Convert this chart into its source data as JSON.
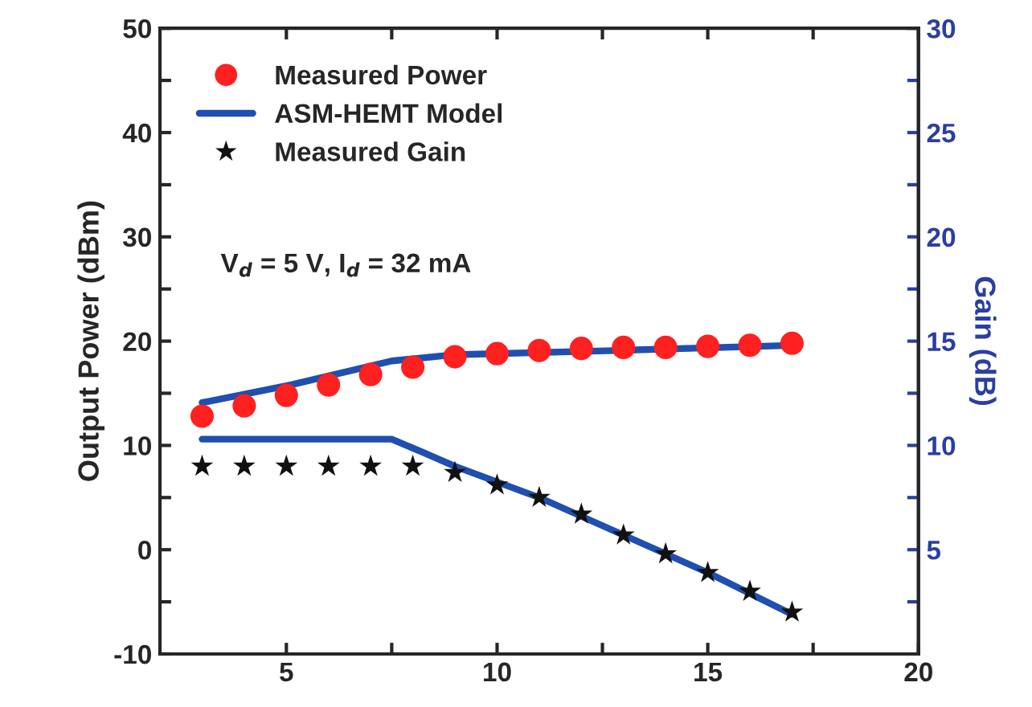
{
  "chart_data": {
    "type": "scatter",
    "xlabel": null,
    "ylabel": "Output Power (dBm)",
    "y2label": "Gain (dB)",
    "xlim": [
      2,
      20
    ],
    "xticks": [
      5,
      {
        "value": 7.5,
        "label": null
      },
      10,
      {
        "value": 12.5,
        "label": null
      },
      15,
      {
        "value": 17.5,
        "label": null
      },
      20
    ],
    "ylim": [
      -10,
      50
    ],
    "yticks": [
      -10,
      {
        "value": -5,
        "label": null
      },
      0,
      {
        "value": 5,
        "label": null
      },
      10,
      {
        "value": 15,
        "label": null
      },
      20,
      {
        "value": 25,
        "label": null
      },
      30,
      {
        "value": 35,
        "label": null
      },
      40,
      {
        "value": 45,
        "label": null
      },
      50
    ],
    "y2lim": [
      0,
      30
    ],
    "y2ticks": [
      {
        "value": 2.5,
        "label": null
      },
      5,
      {
        "value": 7.5,
        "label": null
      },
      10,
      {
        "value": 12.5,
        "label": null
      },
      15,
      {
        "value": 17.5,
        "label": null
      },
      20,
      {
        "value": 22.5,
        "label": null
      },
      25,
      {
        "value": 27.5,
        "label": null
      },
      30
    ],
    "legend": "top left",
    "grid": false,
    "annotations": [
      "V$_{d}$ = 5 V, I$_{d}$ = 32 mA"
    ],
    "series": [
      {
        "name": "Measured Power",
        "marker": "circle",
        "color": "#ff2020",
        "x": [
          3,
          4,
          5,
          6,
          7,
          8,
          9,
          10,
          11,
          12,
          13,
          14,
          15,
          16,
          17
        ],
        "values": [
          12.8,
          13.8,
          14.8,
          15.8,
          16.8,
          17.5,
          18.5,
          18.8,
          19.1,
          19.3,
          19.4,
          19.4,
          19.5,
          19.6,
          19.8
        ]
      },
      {
        "name": "ASM-HEMT Model",
        "type": "line",
        "color": "#1f4fb0",
        "x": [
          3,
          5.1,
          7.5,
          9,
          12.8,
          17
        ],
        "values": [
          14.1,
          15.8,
          18.1,
          18.7,
          19.1,
          19.6
        ]
      },
      {
        "name": "Measured Gain",
        "marker": "star",
        "axis": "y2",
        "color": "#111111",
        "x": [
          3,
          4,
          5,
          6,
          7,
          8,
          9,
          10,
          11,
          12,
          13,
          14,
          15,
          16,
          17
        ],
        "values": [
          9.0,
          9.0,
          9.0,
          9.0,
          9.0,
          9.0,
          8.7,
          8.1,
          7.5,
          6.7,
          5.7,
          4.8,
          3.9,
          3.0,
          2.0
        ]
      },
      {
        "type": "line",
        "axis": "y2",
        "color": "#1f4fb0",
        "x": [
          3,
          7.5,
          8.2,
          9,
          11,
          13,
          15,
          17
        ],
        "values": [
          10.3,
          10.3,
          9.7,
          9.0,
          7.5,
          5.7,
          3.9,
          1.9
        ]
      }
    ]
  }
}
